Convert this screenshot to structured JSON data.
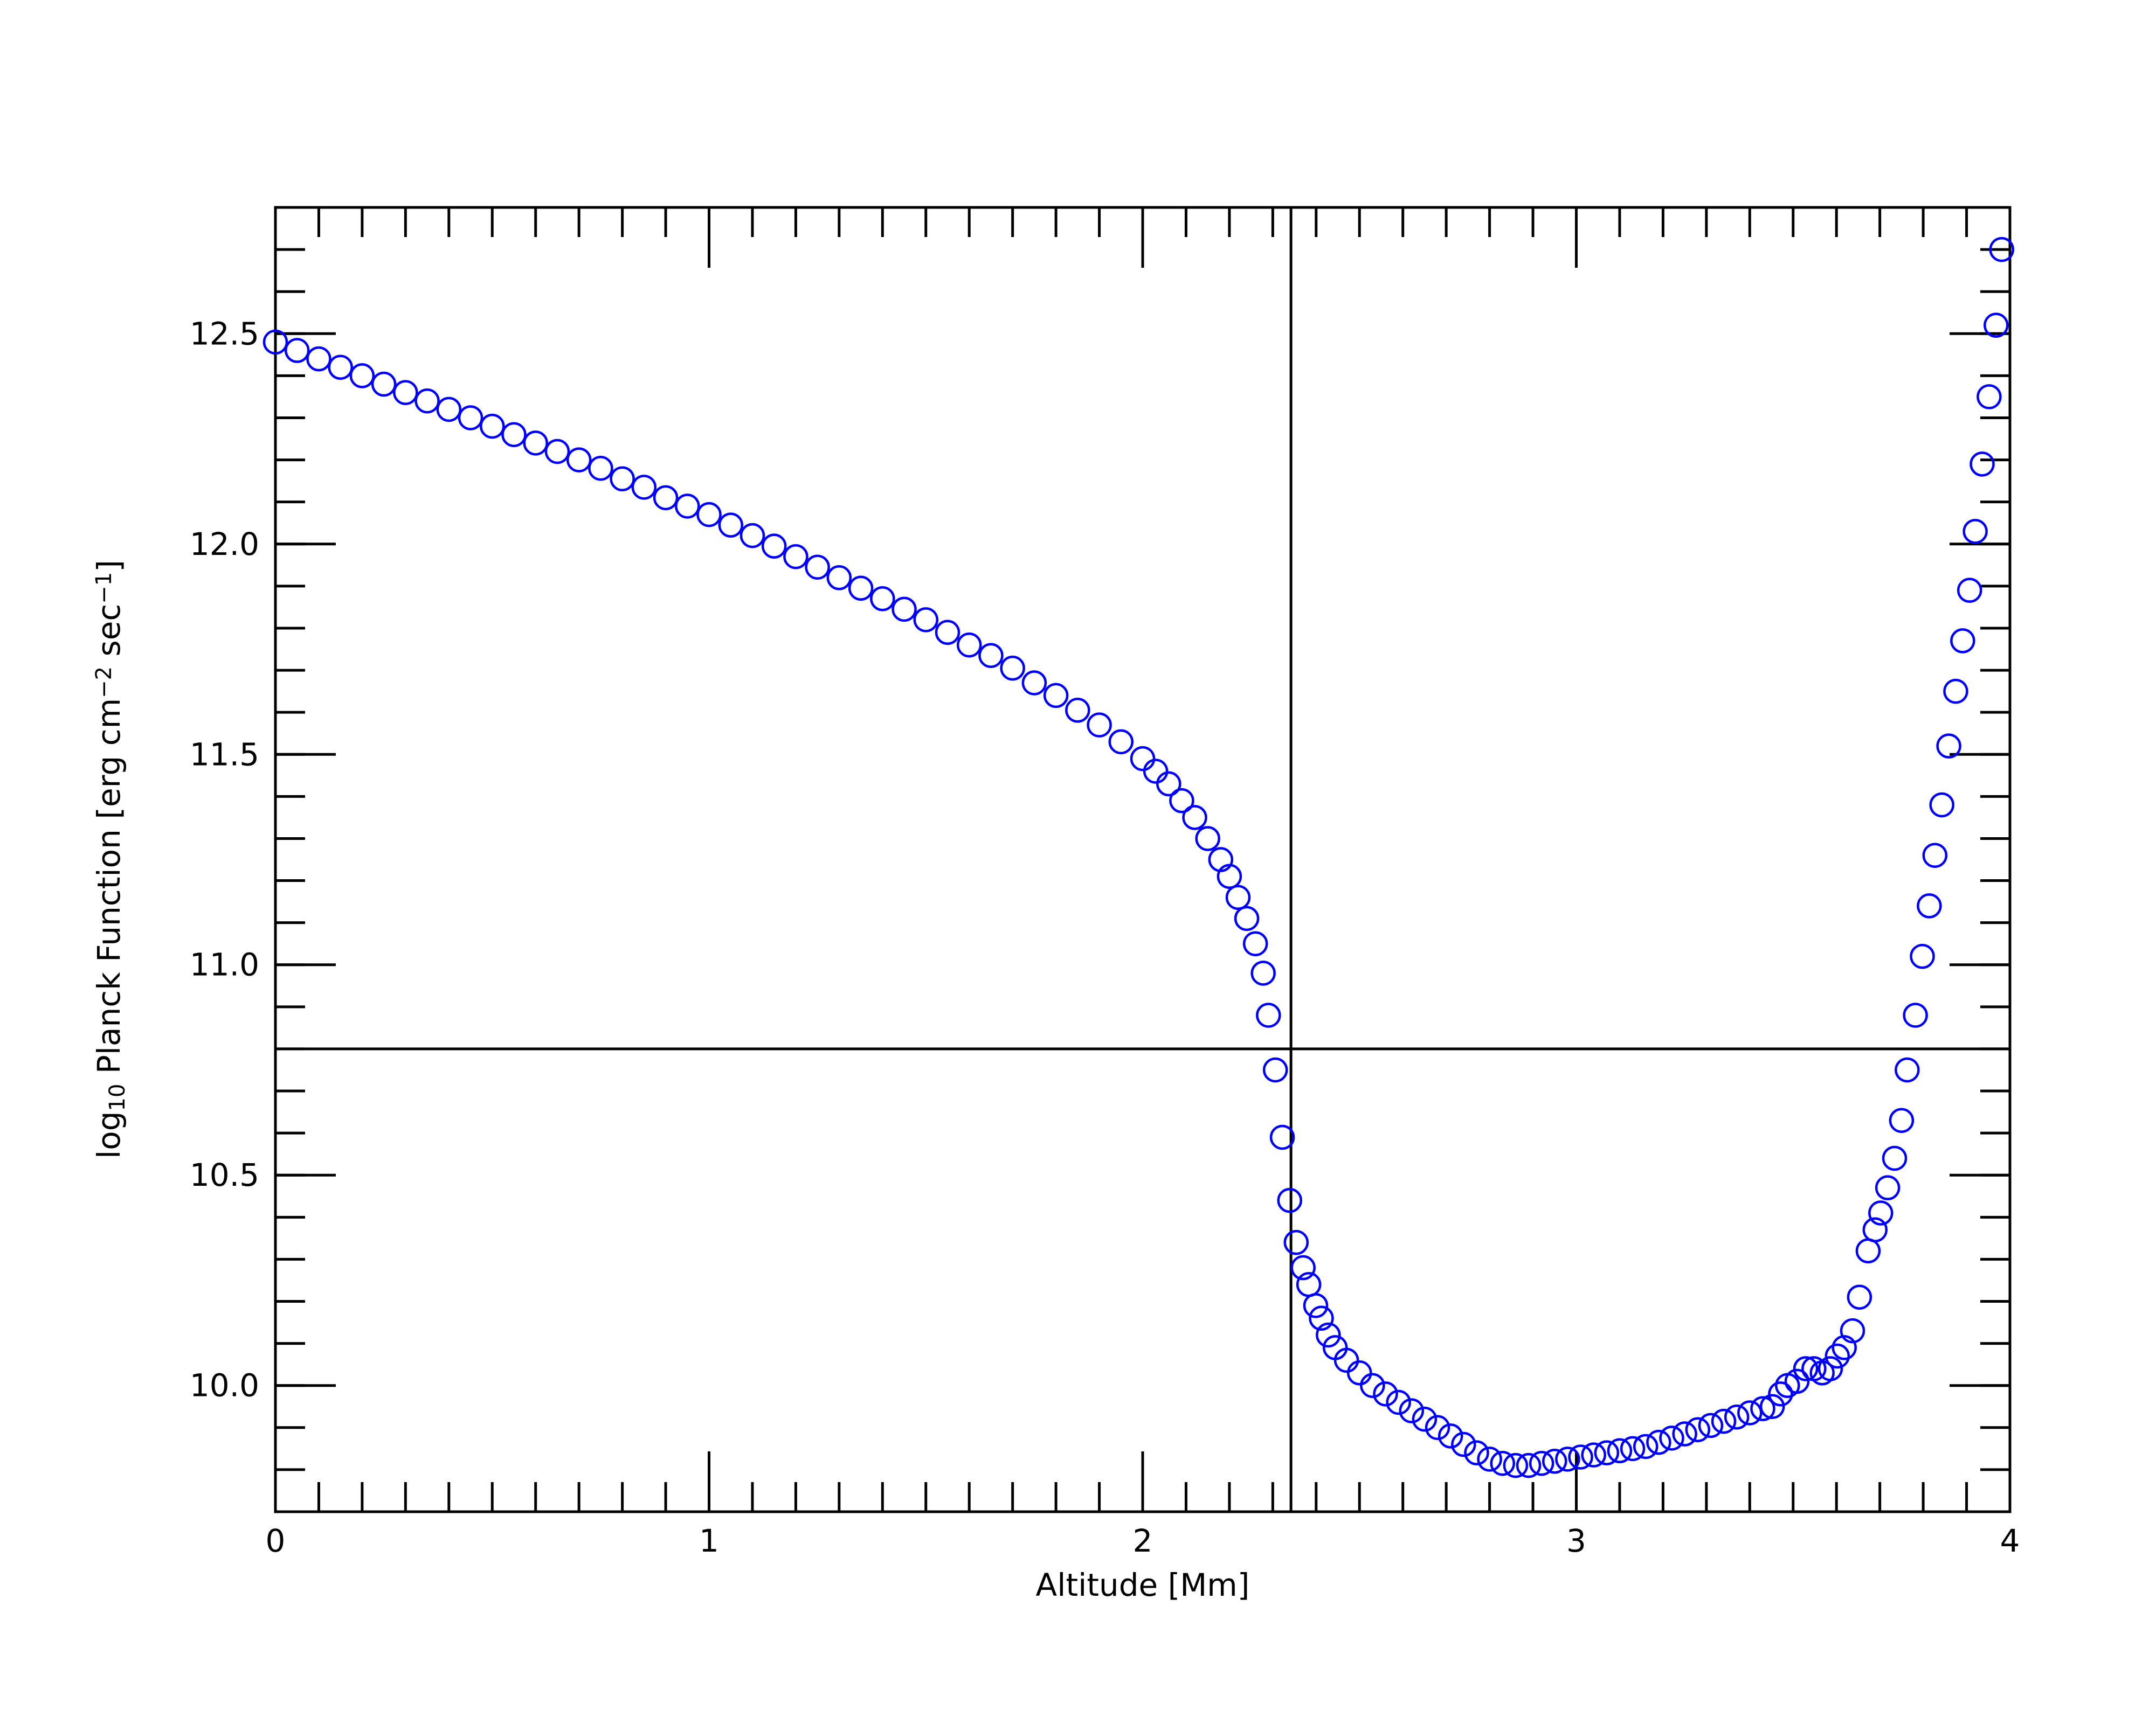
{
  "chart_data": {
    "type": "scatter",
    "xlabel": "Altitude [Mm]",
    "ylabel_parts": [
      "log",
      "10",
      " Planck Function [erg cm",
      "−2",
      " sec",
      "−1",
      "]"
    ],
    "color": "#0000ff",
    "marker": "open-circle",
    "xlim": [
      0,
      4
    ],
    "xticks": [
      0,
      1,
      2,
      3,
      4
    ],
    "ylim": [
      9.7,
      12.8
    ],
    "yticks": [
      {
        "value": 10,
        "label": "10.0"
      },
      10.5,
      {
        "value": 11,
        "label": "11.0"
      },
      11.5,
      {
        "value": 12,
        "label": "12.0"
      },
      12.5
    ],
    "vline": 2.342,
    "hline": 10.8,
    "x": [
      0,
      0.05,
      0.1,
      0.15,
      0.2,
      0.25,
      0.3,
      0.35,
      0.4,
      0.45,
      0.5,
      0.55,
      0.6,
      0.65,
      0.7,
      0.75,
      0.8,
      0.85,
      0.9,
      0.95,
      1.0,
      1.05,
      1.1,
      1.15,
      1.2,
      1.25,
      1.3,
      1.35,
      1.4,
      1.45,
      1.5,
      1.55,
      1.6,
      1.65,
      1.7,
      1.75,
      1.8,
      1.85,
      1.9,
      1.95,
      2.0,
      2.03,
      2.06,
      2.09,
      2.12,
      2.15,
      2.18,
      2.2,
      2.22,
      2.24,
      2.26,
      2.278,
      2.29,
      2.306,
      2.322,
      2.339,
      2.354,
      2.37,
      2.383,
      2.399,
      2.412,
      2.428,
      2.444,
      2.47,
      2.5,
      2.53,
      2.56,
      2.59,
      2.62,
      2.65,
      2.68,
      2.71,
      2.74,
      2.77,
      2.8,
      2.83,
      2.86,
      2.89,
      2.92,
      2.95,
      2.98,
      3.01,
      3.04,
      3.07,
      3.1,
      3.13,
      3.16,
      3.19,
      3.22,
      3.25,
      3.28,
      3.31,
      3.34,
      3.37,
      3.4,
      3.43,
      3.452,
      3.471,
      3.487,
      3.509,
      3.529,
      3.548,
      3.567,
      3.586,
      3.602,
      3.618,
      3.637,
      3.653,
      3.673,
      3.689,
      3.702,
      3.718,
      3.734,
      3.75,
      3.763,
      3.782,
      3.798,
      3.814,
      3.827,
      3.843,
      3.859,
      3.875,
      3.891,
      3.907,
      3.92,
      3.936,
      3.952,
      3.968,
      3.981
    ],
    "values": [
      12.48,
      12.46,
      12.44,
      12.42,
      12.4,
      12.38,
      12.36,
      12.34,
      12.32,
      12.3,
      12.28,
      12.26,
      12.24,
      12.22,
      12.2,
      12.18,
      12.155,
      12.135,
      12.11,
      12.09,
      12.07,
      12.045,
      12.02,
      11.995,
      11.97,
      11.945,
      11.92,
      11.895,
      11.87,
      11.845,
      11.82,
      11.79,
      11.76,
      11.735,
      11.705,
      11.67,
      11.64,
      11.605,
      11.57,
      11.53,
      11.49,
      11.46,
      11.43,
      11.39,
      11.35,
      11.3,
      11.25,
      11.21,
      11.16,
      11.11,
      11.05,
      10.98,
      10.88,
      10.75,
      10.59,
      10.44,
      10.34,
      10.28,
      10.24,
      10.19,
      10.16,
      10.12,
      10.09,
      10.06,
      10.03,
      10.0,
      9.98,
      9.96,
      9.94,
      9.92,
      9.9,
      9.88,
      9.86,
      9.84,
      9.825,
      9.815,
      9.81,
      9.81,
      9.815,
      9.82,
      9.825,
      9.83,
      9.835,
      9.84,
      9.845,
      9.85,
      9.855,
      9.865,
      9.875,
      9.885,
      9.895,
      9.905,
      9.915,
      9.925,
      9.935,
      9.945,
      9.95,
      9.98,
      10.0,
      10.01,
      10.04,
      10.04,
      10.03,
      10.04,
      10.07,
      10.09,
      10.13,
      10.21,
      10.32,
      10.37,
      10.41,
      10.47,
      10.54,
      10.63,
      10.75,
      10.88,
      11.02,
      11.14,
      11.26,
      11.38,
      11.52,
      11.65,
      11.77,
      11.89,
      12.03,
      12.19,
      12.35,
      12.52,
      12.7
    ]
  }
}
